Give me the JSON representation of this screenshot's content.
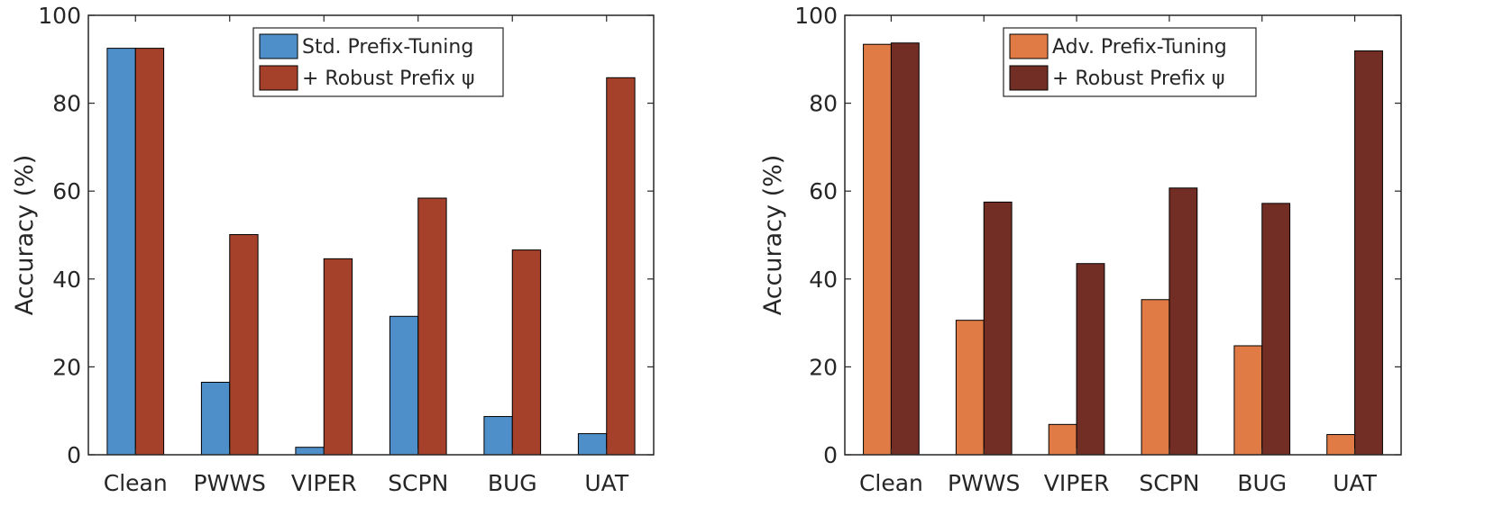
{
  "chart_data": [
    {
      "type": "bar",
      "categories": [
        "Clean",
        "PWWS",
        "VIPER",
        "SCPN",
        "BUG",
        "UAT"
      ],
      "series": [
        {
          "name": "Std. Prefix-Tuning",
          "color": "#4f8fc9",
          "values": [
            92.5,
            16.5,
            1.7,
            31.5,
            8.7,
            4.8
          ]
        },
        {
          "name": "+ Robust Prefix ψ",
          "color": "#a5402b",
          "values": [
            92.5,
            50.1,
            44.6,
            58.4,
            46.6,
            85.8
          ]
        }
      ],
      "xlabel": "",
      "ylabel": "Accuracy (%)",
      "ylim": [
        0,
        100
      ],
      "yticks": [
        "0",
        "20",
        "40",
        "60",
        "80",
        "100"
      ],
      "grid": false,
      "legend_position": "top-right"
    },
    {
      "type": "bar",
      "categories": [
        "Clean",
        "PWWS",
        "VIPER",
        "SCPN",
        "BUG",
        "UAT"
      ],
      "series": [
        {
          "name": "Adv. Prefix-Tuning",
          "color": "#e07b45",
          "values": [
            93.4,
            30.6,
            6.9,
            35.3,
            24.8,
            4.6
          ]
        },
        {
          "name": "+ Robust Prefix ψ",
          "color": "#722e25",
          "values": [
            93.7,
            57.5,
            43.5,
            60.7,
            57.2,
            91.9
          ]
        }
      ],
      "xlabel": "",
      "ylabel": "Accuracy (%)",
      "ylim": [
        0,
        100
      ],
      "yticks": [
        "0",
        "20",
        "40",
        "60",
        "80",
        "100"
      ],
      "grid": false,
      "legend_position": "top-right"
    }
  ]
}
